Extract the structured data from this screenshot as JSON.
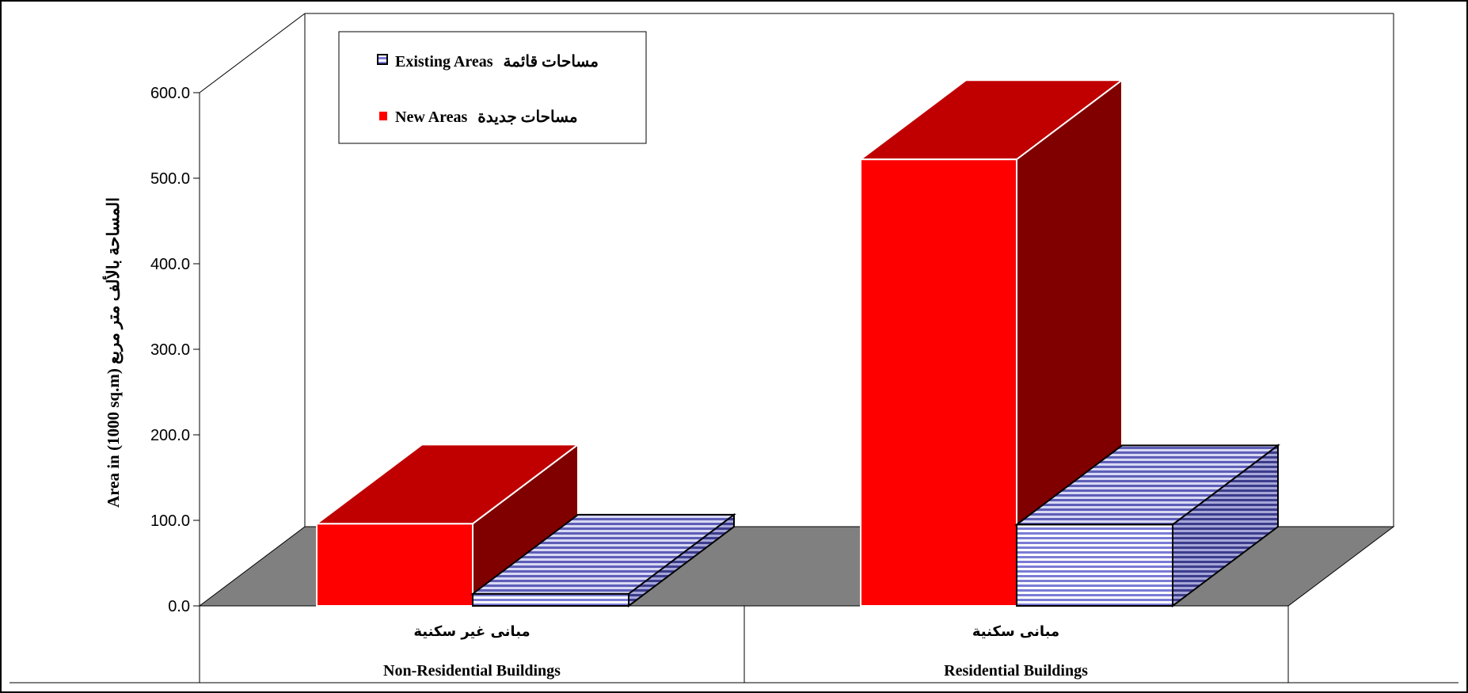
{
  "chart_data": {
    "type": "bar",
    "three_d": true,
    "categories": [
      {
        "label_ar": "مبانى غير سكنية",
        "label_en": "Non-Residential Buildings"
      },
      {
        "label_ar": "مبانى سكنية",
        "label_en": "Residential Buildings"
      }
    ],
    "series": [
      {
        "name": "مساحات جديدة New Areas",
        "legend_en": "New Areas",
        "legend_ar": "مساحات جديدة",
        "values": [
          96,
          522
        ],
        "color": "#ff0000",
        "top_color": "#c00000",
        "side_color": "#800000",
        "pattern": "solid"
      },
      {
        "name": "مساحات قائمة Existing Areas",
        "legend_en": "Existing Areas",
        "legend_ar": "مساحات قائمة",
        "values": [
          14,
          95
        ],
        "color": "#6666cc",
        "pattern": "horizontal-stripes"
      }
    ],
    "ylabel": "Area in (1000 sq.m) المساحة بالألف متر مربع",
    "ylim": [
      0,
      600
    ],
    "yticks": [
      "0.0",
      "100.0",
      "200.0",
      "300.0",
      "400.0",
      "500.0",
      "600.0"
    ],
    "legend_position": "top-left",
    "floor_color": "#808080"
  }
}
